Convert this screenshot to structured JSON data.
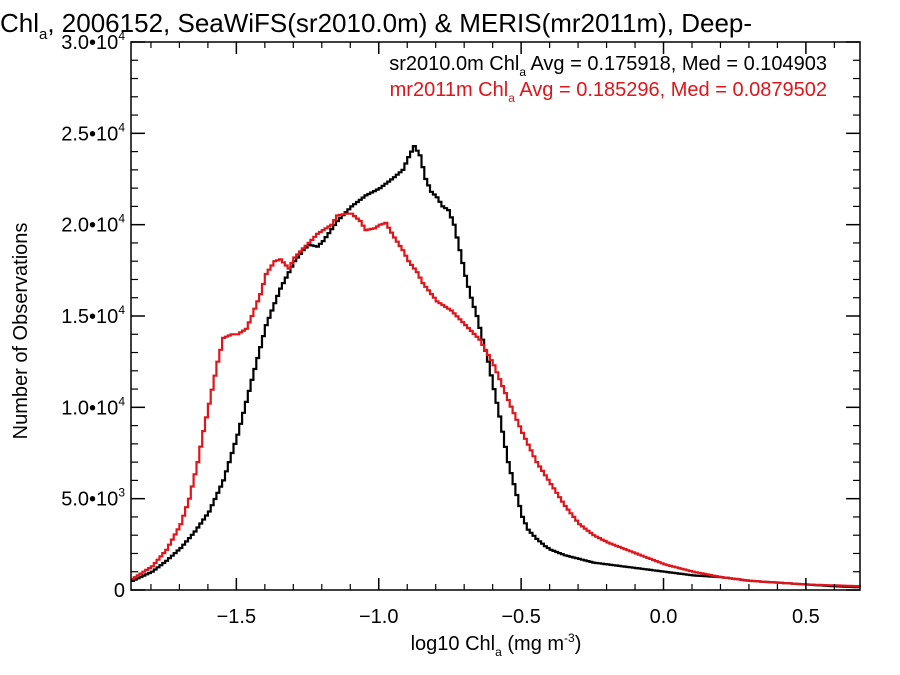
{
  "chart_data": {
    "type": "line",
    "title_parts": [
      "Chl",
      "a",
      ", 2006152, SeaWiFS(sr2010.0m) & MERIS(mr2011m), Deep-"
    ],
    "xlabel_parts": [
      "log10 Chl",
      "a",
      " (mg m",
      "-3",
      ")"
    ],
    "ylabel": "Number of Observations",
    "xlim": [
      -1.87,
      0.69
    ],
    "ylim": [
      0,
      30000
    ],
    "x_ticks": [
      {
        "value": -1.5,
        "label": "−1.5"
      },
      {
        "value": -1.0,
        "label": "−1.0"
      },
      {
        "value": -0.5,
        "label": "−0.5"
      },
      {
        "value": 0.0,
        "label": "0.0"
      },
      {
        "value": 0.5,
        "label": "0.5"
      }
    ],
    "y_ticks": [
      {
        "value": 0,
        "mantissa": "0",
        "exp": ""
      },
      {
        "value": 5000,
        "mantissa": "5.0•10",
        "exp": "3"
      },
      {
        "value": 10000,
        "mantissa": "1.0•10",
        "exp": "4"
      },
      {
        "value": 15000,
        "mantissa": "1.5•10",
        "exp": "4"
      },
      {
        "value": 20000,
        "mantissa": "2.0•10",
        "exp": "4"
      },
      {
        "value": 25000,
        "mantissa": "2.5•10",
        "exp": "4"
      },
      {
        "value": 30000,
        "mantissa": "3.0•10",
        "exp": "4"
      }
    ],
    "grid": false,
    "legend_position": "top-right",
    "series": [
      {
        "legend_parts": [
          "sr2010.0m Chl",
          "a",
          " Avg = 0.175918, Med = 0.104903"
        ],
        "color": "#000000",
        "x": [
          -1.87,
          -1.8,
          -1.75,
          -1.7,
          -1.65,
          -1.6,
          -1.55,
          -1.5,
          -1.45,
          -1.4,
          -1.35,
          -1.3,
          -1.27,
          -1.25,
          -1.22,
          -1.2,
          -1.15,
          -1.1,
          -1.05,
          -1.0,
          -0.95,
          -0.92,
          -0.9,
          -0.88,
          -0.86,
          -0.84,
          -0.82,
          -0.8,
          -0.78,
          -0.76,
          -0.74,
          -0.72,
          -0.7,
          -0.68,
          -0.66,
          -0.64,
          -0.62,
          -0.6,
          -0.58,
          -0.55,
          -0.52,
          -0.5,
          -0.48,
          -0.45,
          -0.42,
          -0.4,
          -0.35,
          -0.3,
          -0.25,
          -0.2,
          -0.15,
          -0.1,
          -0.05,
          0.0,
          0.1,
          0.2,
          0.3,
          0.4,
          0.5,
          0.6,
          0.69
        ],
        "y": [
          500,
          1000,
          1600,
          2300,
          3200,
          4300,
          6000,
          8500,
          11500,
          14500,
          16500,
          18000,
          18600,
          18900,
          18800,
          19100,
          20200,
          21000,
          21600,
          22000,
          22600,
          23000,
          23700,
          24300,
          23800,
          22500,
          21800,
          21500,
          21000,
          20800,
          20000,
          18600,
          17200,
          16000,
          15000,
          13700,
          12500,
          11000,
          9500,
          7000,
          5200,
          4000,
          3300,
          2800,
          2400,
          2200,
          1900,
          1700,
          1500,
          1400,
          1300,
          1200,
          1100,
          1000,
          800,
          700,
          500,
          400,
          300,
          200,
          150
        ]
      },
      {
        "legend_parts": [
          "mr2011m Chl",
          "a",
          " Avg = 0.185296, Med = 0.0879502"
        ],
        "color": "#e0141b",
        "x": [
          -1.87,
          -1.8,
          -1.75,
          -1.7,
          -1.67,
          -1.64,
          -1.62,
          -1.6,
          -1.57,
          -1.55,
          -1.52,
          -1.5,
          -1.47,
          -1.45,
          -1.42,
          -1.4,
          -1.37,
          -1.35,
          -1.32,
          -1.3,
          -1.27,
          -1.25,
          -1.22,
          -1.2,
          -1.17,
          -1.15,
          -1.12,
          -1.1,
          -1.07,
          -1.05,
          -1.02,
          -1.0,
          -0.98,
          -0.95,
          -0.92,
          -0.9,
          -0.87,
          -0.85,
          -0.82,
          -0.8,
          -0.75,
          -0.7,
          -0.65,
          -0.6,
          -0.55,
          -0.5,
          -0.45,
          -0.4,
          -0.35,
          -0.3,
          -0.25,
          -0.2,
          -0.15,
          -0.1,
          -0.05,
          0.0,
          0.1,
          0.2,
          0.3,
          0.4,
          0.5,
          0.6,
          0.69
        ],
        "y": [
          600,
          1300,
          2200,
          3600,
          5000,
          7000,
          8700,
          10200,
          12500,
          13800,
          14000,
          14000,
          14300,
          15000,
          16200,
          17300,
          18000,
          18100,
          17600,
          18200,
          18700,
          19000,
          19500,
          19700,
          20000,
          20500,
          20600,
          20600,
          20200,
          19700,
          19800,
          20000,
          20100,
          19300,
          18600,
          18000,
          17400,
          16800,
          16200,
          15800,
          15300,
          14500,
          13700,
          12300,
          10400,
          8600,
          7000,
          5800,
          4600,
          3600,
          3000,
          2600,
          2300,
          2000,
          1700,
          1400,
          1000,
          700,
          500,
          400,
          300,
          250,
          200
        ]
      }
    ]
  }
}
